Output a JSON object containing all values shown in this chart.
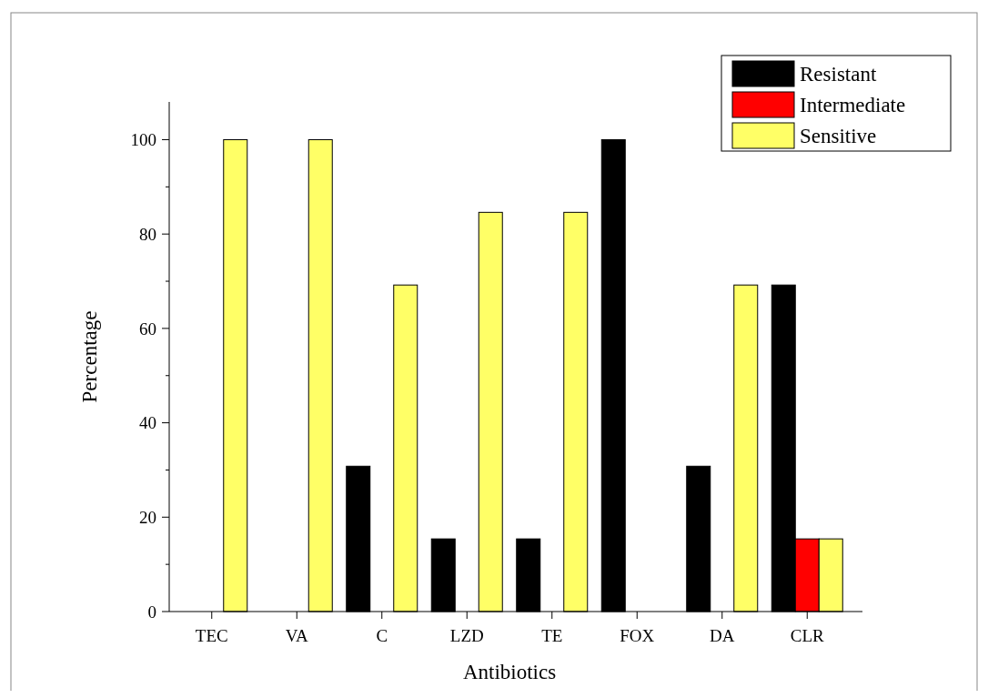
{
  "chart_data": {
    "type": "bar",
    "xlabel": "Antibiotics",
    "ylabel": "Percentage",
    "categories": [
      "TEC",
      "VA",
      "C",
      "LZD",
      "TE",
      "FOX",
      "DA",
      "CLR"
    ],
    "series": [
      {
        "name": "Resistant",
        "color": "#000000",
        "values": [
          0,
          0,
          30.8,
          15.4,
          15.4,
          100,
          30.8,
          69.2
        ]
      },
      {
        "name": "Intermediate",
        "color": "#ff0000",
        "values": [
          0,
          0,
          0,
          0,
          0,
          0,
          0,
          15.4
        ]
      },
      {
        "name": "Sensitive",
        "color": "#ffff66",
        "values": [
          100,
          100,
          69.2,
          84.6,
          84.6,
          0,
          69.2,
          15.4
        ]
      }
    ],
    "ylim": [
      0,
      108
    ],
    "yticks": [
      0,
      20,
      40,
      60,
      80,
      100
    ],
    "grid": false,
    "legend": "top right"
  }
}
